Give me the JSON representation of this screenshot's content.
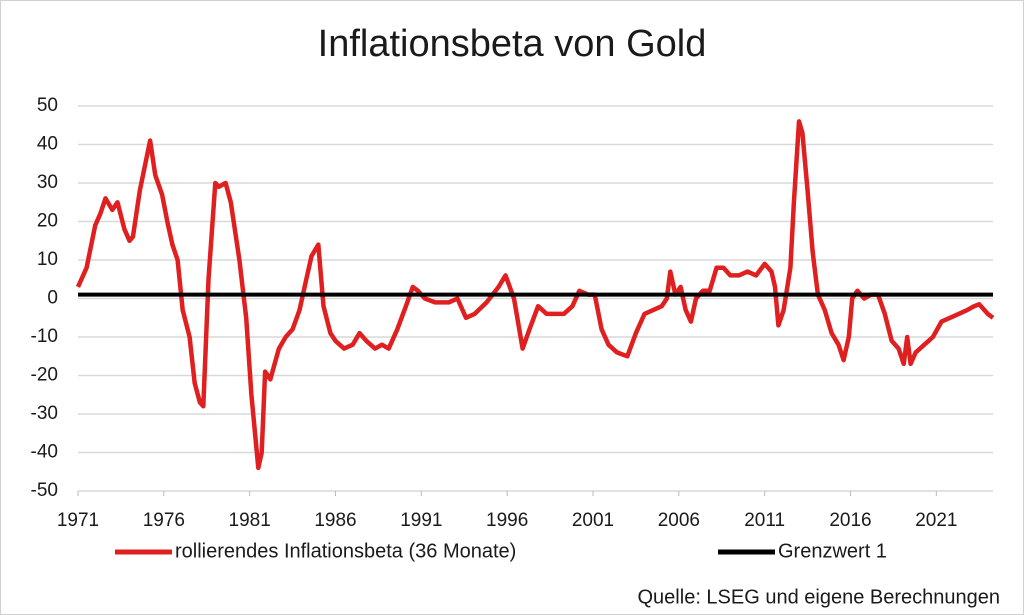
{
  "chart_data": {
    "type": "line",
    "title": "Inflationsbeta von Gold",
    "source": "Quelle: LSEG und eigene Berechnungen",
    "xlim": [
      1971,
      2024.3
    ],
    "xticks": [
      1971,
      1976,
      1981,
      1986,
      1991,
      1996,
      2001,
      2006,
      2011,
      2016,
      2021
    ],
    "ylim": [
      -50,
      50
    ],
    "yticks": [
      -50,
      -40,
      -30,
      -20,
      -10,
      0,
      10,
      20,
      30,
      40,
      50
    ],
    "grid": true,
    "series": [
      {
        "name": "rollierendes Inflationsbeta (36 Monate)",
        "color": "#e02020",
        "x": [
          1971.0,
          1971.5,
          1972.0,
          1972.3,
          1972.6,
          1973.0,
          1973.3,
          1973.7,
          1974.0,
          1974.2,
          1974.6,
          1975.2,
          1975.5,
          1975.9,
          1976.2,
          1976.5,
          1976.8,
          1977.1,
          1977.5,
          1977.8,
          1978.1,
          1978.3,
          1978.6,
          1979.0,
          1979.2,
          1979.6,
          1979.9,
          1980.4,
          1980.8,
          1981.1,
          1981.5,
          1981.7,
          1981.9,
          1982.2,
          1982.7,
          1983.1,
          1983.5,
          1983.9,
          1984.3,
          1984.6,
          1985.0,
          1985.3,
          1985.7,
          1986.0,
          1986.5,
          1987.0,
          1987.4,
          1987.8,
          1988.3,
          1988.7,
          1989.1,
          1989.6,
          1990.1,
          1990.5,
          1990.8,
          1991.2,
          1991.8,
          1992.6,
          1993.1,
          1993.6,
          1994.1,
          1994.8,
          1995.5,
          1995.9,
          1996.4,
          1996.9,
          1997.3,
          1997.8,
          1998.3,
          1998.8,
          1999.3,
          1999.8,
          2000.2,
          2000.7,
          2001.1,
          2001.5,
          2001.9,
          2002.4,
          2003.0,
          2003.5,
          2004.0,
          2004.5,
          2005.0,
          2005.3,
          2005.5,
          2005.8,
          2006.1,
          2006.4,
          2006.7,
          2007.0,
          2007.4,
          2007.8,
          2008.2,
          2008.6,
          2009.0,
          2009.5,
          2010.0,
          2010.5,
          2011.0,
          2011.4,
          2011.6,
          2011.8,
          2012.1,
          2012.5,
          2012.7,
          2013.0,
          2013.2,
          2013.5,
          2013.8,
          2014.1,
          2014.5,
          2014.9,
          2015.3,
          2015.6,
          2015.9,
          2016.1,
          2016.4,
          2016.8,
          2017.2,
          2017.6,
          2018.0,
          2018.4,
          2018.8,
          2019.1,
          2019.3,
          2019.5,
          2019.8,
          2020.3,
          2020.8,
          2021.3,
          2021.8,
          2022.3,
          2022.8,
          2023.2,
          2023.5,
          2023.8,
          2024.0,
          2024.3
        ],
        "values": [
          3,
          8,
          19,
          22,
          26,
          23,
          25,
          18,
          15,
          16,
          28,
          41,
          32,
          27,
          20,
          14,
          10,
          -3,
          -10,
          -22,
          -27,
          -28,
          5,
          30,
          29,
          30,
          25,
          10,
          -5,
          -25,
          -44,
          -40,
          -19,
          -21,
          -13,
          -10,
          -8,
          -3,
          5,
          11,
          14,
          -2,
          -9,
          -11,
          -13,
          -12,
          -9,
          -11,
          -13,
          -12,
          -13,
          -8,
          -2,
          3,
          2,
          0,
          -1,
          -1,
          0,
          -5,
          -4,
          -1,
          3,
          6,
          0,
          -13,
          -8,
          -2,
          -4,
          -4,
          -4,
          -2,
          2,
          1,
          1,
          -8,
          -12,
          -14,
          -15,
          -9,
          -4,
          -3,
          -2,
          0,
          7,
          1,
          3,
          -3,
          -6,
          0,
          2,
          2,
          8,
          8,
          6,
          6,
          7,
          6,
          9,
          7,
          3,
          -7,
          -3,
          8,
          25,
          46,
          43,
          28,
          12,
          1,
          -3,
          -9,
          -12,
          -16,
          -10,
          0,
          2,
          0,
          1,
          1,
          -4,
          -11,
          -13,
          -17,
          -10,
          -17,
          -14,
          -12,
          -10,
          -6,
          -5,
          -4,
          -3,
          -2,
          -1.5,
          -3,
          -4,
          -5
        ]
      },
      {
        "name": "Grenzwert 1",
        "color": "#000000",
        "x": [
          1971,
          2024.3
        ],
        "values": [
          1,
          1
        ]
      }
    ]
  }
}
